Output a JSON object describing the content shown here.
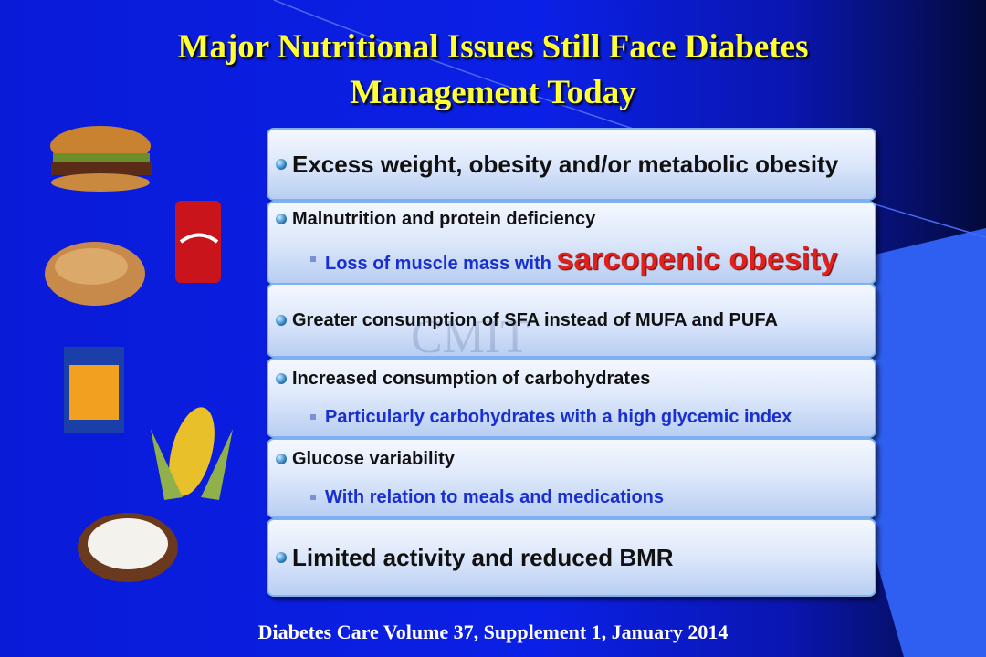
{
  "title": {
    "line1": "Major Nutritional Issues Still Face Diabetes",
    "line2": "Management Today"
  },
  "items": [
    {
      "text": "Excess weight, obesity and/or metabolic obesity",
      "subitems": []
    },
    {
      "text": "Malnutrition and protein deficiency",
      "subitems": [
        {
          "text": "Loss of muscle mass with ",
          "emphasis": "sarcopenic obesity"
        }
      ]
    },
    {
      "text": "Greater consumption of SFA instead of MUFA and PUFA",
      "subitems": []
    },
    {
      "text": "Increased consumption of carbohydrates",
      "subitems": [
        {
          "text": "Particularly carbohydrates with a high glycemic index"
        }
      ]
    },
    {
      "text": "Glucose variability",
      "subitems": [
        {
          "text": "With relation to meals and medications"
        }
      ]
    },
    {
      "text": "Limited activity and reduced BMR",
      "subitems": []
    }
  ],
  "watermark": "CMIT",
  "footer": "Diabetes Care Volume 37, Supplement 1, January 2014"
}
